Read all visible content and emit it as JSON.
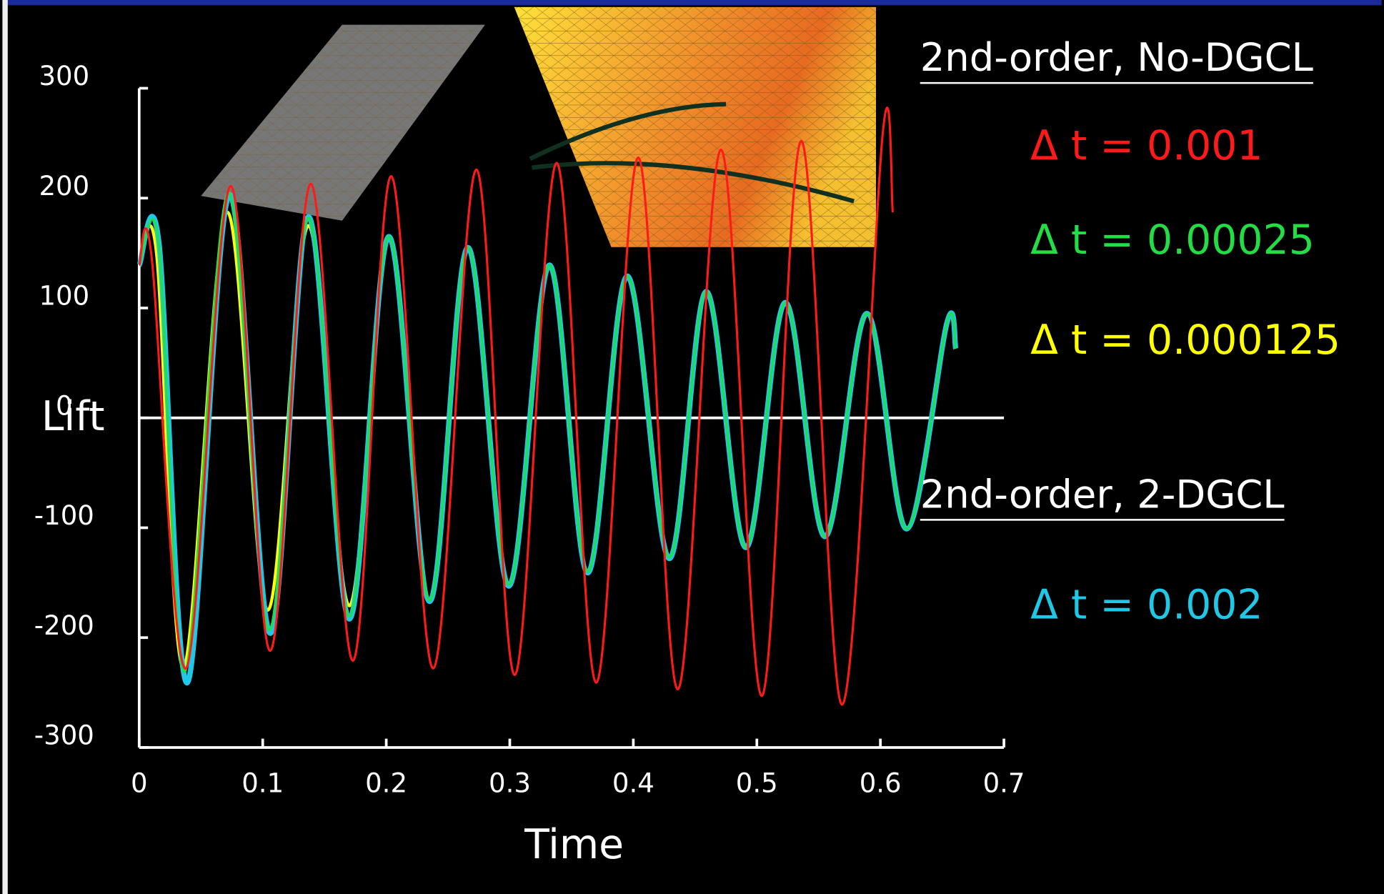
{
  "chart_data": {
    "type": "line",
    "xlabel": "Time",
    "ylabel": "Lift",
    "xlim": [
      0,
      0.7
    ],
    "xticks": [
      0,
      0.1,
      0.2,
      0.3,
      0.4,
      0.5,
      0.6,
      0.7
    ],
    "ylim": [
      -300,
      300
    ],
    "yticks": [
      -300,
      -200,
      -100,
      0,
      100,
      200,
      300
    ],
    "zero_line": true,
    "legend_headings": [
      "2nd-order, No-DGCL",
      "2nd-order, 2-DGCL"
    ],
    "series": [
      {
        "name": "Δ t = 0.000125",
        "color": "#ffff00",
        "x": [
          0,
          0.014,
          0.036,
          0.071,
          0.104,
          0.137,
          0.17,
          0.202,
          0.235,
          0.266,
          0.299,
          0.332,
          0.363,
          0.395,
          0.429,
          0.459,
          0.491,
          0.523,
          0.555,
          0.589,
          0.621,
          0.654,
          0.661
        ],
        "values": [
          139,
          150,
          -227,
          187,
          -175,
          175,
          -171,
          163,
          -166,
          154,
          -152,
          139,
          -140,
          129,
          -127,
          115,
          -118,
          105,
          -108,
          95,
          -101,
          87,
          63
        ]
      },
      {
        "name": "Δ t = 0.002",
        "color": "#1ec8e6",
        "x": [
          0,
          0.016,
          0.039,
          0.073,
          0.106,
          0.137,
          0.17,
          0.202,
          0.235,
          0.266,
          0.299,
          0.332,
          0.363,
          0.395,
          0.429,
          0.459,
          0.491,
          0.523,
          0.555,
          0.589,
          0.621,
          0.654,
          0.661
        ],
        "values": [
          139,
          159,
          -241,
          203,
          -196,
          183,
          -183,
          165,
          -167,
          155,
          -153,
          139,
          -141,
          129,
          -128,
          115,
          -118,
          105,
          -108,
          95,
          -101,
          87,
          63
        ]
      },
      {
        "name": "Δ t = 0.00025",
        "color": "#22dd44",
        "x": [
          0,
          0.016,
          0.037,
          0.072,
          0.105,
          0.137,
          0.17,
          0.202,
          0.235,
          0.266,
          0.299,
          0.332,
          0.363,
          0.395,
          0.429,
          0.459,
          0.491,
          0.523,
          0.555,
          0.589,
          0.621,
          0.654,
          0.661
        ],
        "values": [
          139,
          157,
          -231,
          205,
          -193,
          182,
          -181,
          165,
          -166,
          155,
          -152,
          139,
          -140,
          129,
          -127,
          115,
          -118,
          105,
          -108,
          95,
          -101,
          87,
          63
        ]
      },
      {
        "name": "Δ t = 0.001",
        "color": "#ff1a1a",
        "x": [
          0,
          0.01,
          0.038,
          0.074,
          0.106,
          0.139,
          0.173,
          0.204,
          0.238,
          0.273,
          0.304,
          0.338,
          0.37,
          0.404,
          0.436,
          0.471,
          0.504,
          0.536,
          0.569,
          0.602,
          0.61
        ],
        "values": [
          139,
          147,
          -228,
          211,
          -212,
          213,
          -221,
          220,
          -228,
          226,
          -234,
          232,
          -241,
          237,
          -247,
          244,
          -253,
          252,
          -261,
          260,
          187
        ]
      }
    ]
  }
}
